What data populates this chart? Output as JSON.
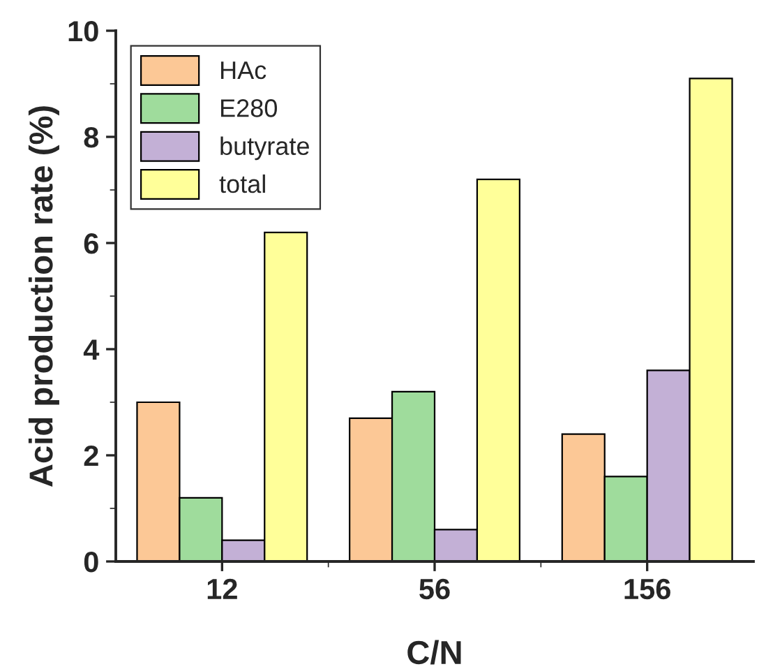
{
  "chart_data": {
    "type": "bar",
    "xlabel": "C/N",
    "ylabel": "Acid production rate (%)",
    "categories": [
      "12",
      "56",
      "156"
    ],
    "series": [
      {
        "name": "HAc",
        "color": "#fcc896",
        "values": [
          3.0,
          2.7,
          2.4
        ]
      },
      {
        "name": "E280",
        "color": "#9fdc9c",
        "values": [
          1.2,
          3.2,
          1.6
        ]
      },
      {
        "name": "butyrate",
        "color": "#c3b0d6",
        "values": [
          0.4,
          0.6,
          3.6
        ]
      },
      {
        "name": "total",
        "color": "#ffff99",
        "values": [
          6.2,
          7.2,
          9.1
        ]
      }
    ],
    "ylim": [
      0,
      10
    ],
    "yticks": [
      0,
      2,
      4,
      6,
      8,
      10
    ],
    "grid": false,
    "legend": "top left"
  }
}
